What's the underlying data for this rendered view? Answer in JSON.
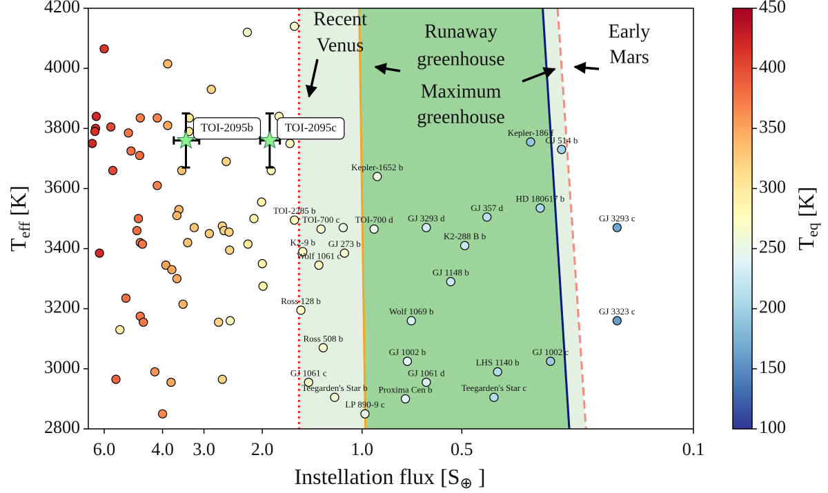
{
  "chart_data": {
    "type": "scatter",
    "xlabel": [
      "Instellation flux [S",
      "⊕",
      " ]"
    ],
    "ylabel": [
      "T",
      "eff",
      " [K]"
    ],
    "xscale": "log",
    "xlim": [
      6.7,
      0.1
    ],
    "xticks": [
      {
        "value": 6,
        "label": "6.0"
      },
      {
        "value": 4,
        "label": "4.0"
      },
      {
        "value": 3,
        "label": "3.0"
      },
      {
        "value": 2,
        "label": "2.0"
      },
      {
        "value": 1,
        "label": "1.0"
      },
      0.5,
      0.1
    ],
    "ylim": [
      2800,
      4200
    ],
    "yticks": [
      2800,
      3000,
      3200,
      3400,
      3600,
      3800,
      4000,
      4200
    ],
    "points": {
      "x": [
        6.0,
        2.22,
        1.6,
        3.86,
        2.85,
        6.34,
        6.37,
        6.4,
        6.52,
        5.73,
        4.67,
        4.15,
        3.86,
        5.07,
        3.32,
        3.33,
        1.78,
        1.65,
        1.88,
        3.5,
        5.65,
        4.98,
        4.69,
        2.57,
        4.15,
        3.57,
        3.62,
        2.01,
        2.12,
        4.73,
        3.21,
        4.78,
        4.67,
        4.6,
        3.36,
        2.64,
        2.61,
        2.52,
        2.89,
        2.21,
        2.51,
        6.2,
        3.91,
        3.75,
        2.0,
        1.14,
        1.99,
        3.62,
        3.47,
        5.16,
        4.67,
        4.57,
        5.38,
        2.71,
        2.5,
        4.22,
        5.53,
        3.77,
        2.64,
        4.0,
        0.31,
        0.25,
        0.9,
        0.29,
        0.42,
        0.17,
        1.6,
        1.33,
        0.92,
        0.64,
        1.51,
        1.13,
        1.35,
        0.49,
        0.54,
        1.53,
        0.71,
        0.17,
        1.31,
        0.73,
        0.27,
        0.39,
        1.45,
        0.64,
        1.21,
        0.74,
        0.4,
        0.98
      ],
      "y": [
        4065,
        4120,
        4140,
        4015,
        3930,
        3840,
        3800,
        3790,
        3750,
        3805,
        3835,
        3835,
        3810,
        3785,
        3835,
        3790,
        3840,
        3750,
        3660,
        3660,
        3660,
        3725,
        3710,
        3690,
        3610,
        3530,
        3510,
        3555,
        3500,
        3500,
        3470,
        3460,
        3420,
        3415,
        3420,
        3475,
        3460,
        3455,
        3450,
        3415,
        3395,
        3385,
        3345,
        3330,
        3350,
        3470,
        3275,
        3300,
        3215,
        3235,
        3175,
        3155,
        3130,
        3155,
        3160,
        2990,
        2965,
        2955,
        2965,
        2850,
        3755,
        3730,
        3640,
        3535,
        3505,
        3470,
        3495,
        3465,
        3465,
        3470,
        3390,
        3385,
        3345,
        3410,
        3290,
        3195,
        3160,
        3160,
        3070,
        3025,
        3025,
        2990,
        2955,
        2955,
        2905,
        2900,
        2905,
        2850
      ],
      "c": [
        410,
        265,
        265,
        340,
        320,
        420,
        415,
        415,
        420,
        400,
        370,
        370,
        350,
        375,
        300,
        300,
        275,
        275,
        275,
        330,
        400,
        380,
        380,
        320,
        370,
        340,
        340,
        290,
        290,
        380,
        330,
        380,
        375,
        375,
        330,
        320,
        320,
        320,
        325,
        300,
        320,
        420,
        350,
        350,
        290,
        255,
        290,
        350,
        340,
        380,
        375,
        375,
        290,
        320,
        280,
        360,
        385,
        350,
        320,
        365,
        190,
        200,
        255,
        205,
        215,
        165,
        275,
        265,
        250,
        230,
        275,
        265,
        270,
        225,
        225,
        270,
        235,
        160,
        265,
        240,
        195,
        210,
        270,
        235,
        260,
        240,
        210,
        250
      ],
      "labels": [
        null,
        null,
        null,
        null,
        null,
        null,
        null,
        null,
        null,
        null,
        null,
        null,
        null,
        null,
        null,
        null,
        null,
        null,
        null,
        null,
        null,
        null,
        null,
        null,
        null,
        null,
        null,
        null,
        null,
        null,
        null,
        null,
        null,
        null,
        null,
        null,
        null,
        null,
        null,
        null,
        null,
        null,
        null,
        null,
        null,
        null,
        null,
        null,
        null,
        null,
        null,
        null,
        null,
        null,
        null,
        null,
        null,
        null,
        null,
        null,
        "Kepler-186 f",
        "GJ 514 b",
        "Kepler-1652 b",
        "HD 180617 b",
        "GJ 357 d",
        "GJ 3293 c",
        "TOI-2285 b",
        "TOI-700 c",
        "TOI-700 d",
        "GJ 3293 d",
        "K2-9 b",
        "GJ 273 b",
        "Wolf 1061 c",
        "K2-288 B b",
        "GJ 1148 b",
        "Ross 128 b",
        "Wolf 1069 b",
        "GJ 3323 c",
        "Ross 508 b",
        "GJ 1002 b",
        "GJ 1002 c",
        "LHS 1140 b",
        "GJ 1061 c",
        "GJ 1061 d",
        "Teegarden's Star b",
        "Proxima Cen b",
        "Teegarden's Star c",
        "LP 890-9 c"
      ]
    },
    "targets": {
      "color": "#90ee90",
      "items": [
        {
          "label": "TOI-2095b",
          "x": 3.4,
          "xerr": 0.3,
          "y": 3760,
          "yerr": 90
        },
        {
          "label": "TOI-2095c",
          "x": 1.9,
          "xerr": 0.13,
          "y": 3760,
          "yerr": 90
        }
      ]
    },
    "boundaries": [
      {
        "name": [
          "Recent",
          "Venus"
        ],
        "x": [
          1.55,
          1.55
        ],
        "color": "#ff1a1a",
        "style": "dotted",
        "fill": "#e4f1e2"
      },
      {
        "name": [
          "Runaway",
          "greenhouse"
        ],
        "x": [
          1.02,
          0.977
        ],
        "color": "#f5a623",
        "style": "solid",
        "fill": "#9dd49b"
      },
      {
        "name": [
          "Maximum",
          "greenhouse"
        ],
        "x": [
          0.285,
          0.237
        ],
        "color": "#0a1a80",
        "style": "solid",
        "fill": "#e4f1e2"
      },
      {
        "name": [
          "Early",
          "Mars"
        ],
        "x": [
          0.257,
          0.211
        ],
        "color": "#f58a7e",
        "style": "dashed"
      }
    ],
    "colorbar": {
      "label": [
        "T",
        "eq",
        " [K]"
      ],
      "clim": [
        100,
        450
      ],
      "ticks": [
        100,
        150,
        200,
        250,
        300,
        350,
        400,
        450
      ],
      "cmap": [
        "#313695",
        "#4575b4",
        "#74add1",
        "#abd9e9",
        "#e0f3f8",
        "#ffffbf",
        "#fee090",
        "#fdae61",
        "#f46d43",
        "#d73027",
        "#a50026"
      ]
    }
  }
}
